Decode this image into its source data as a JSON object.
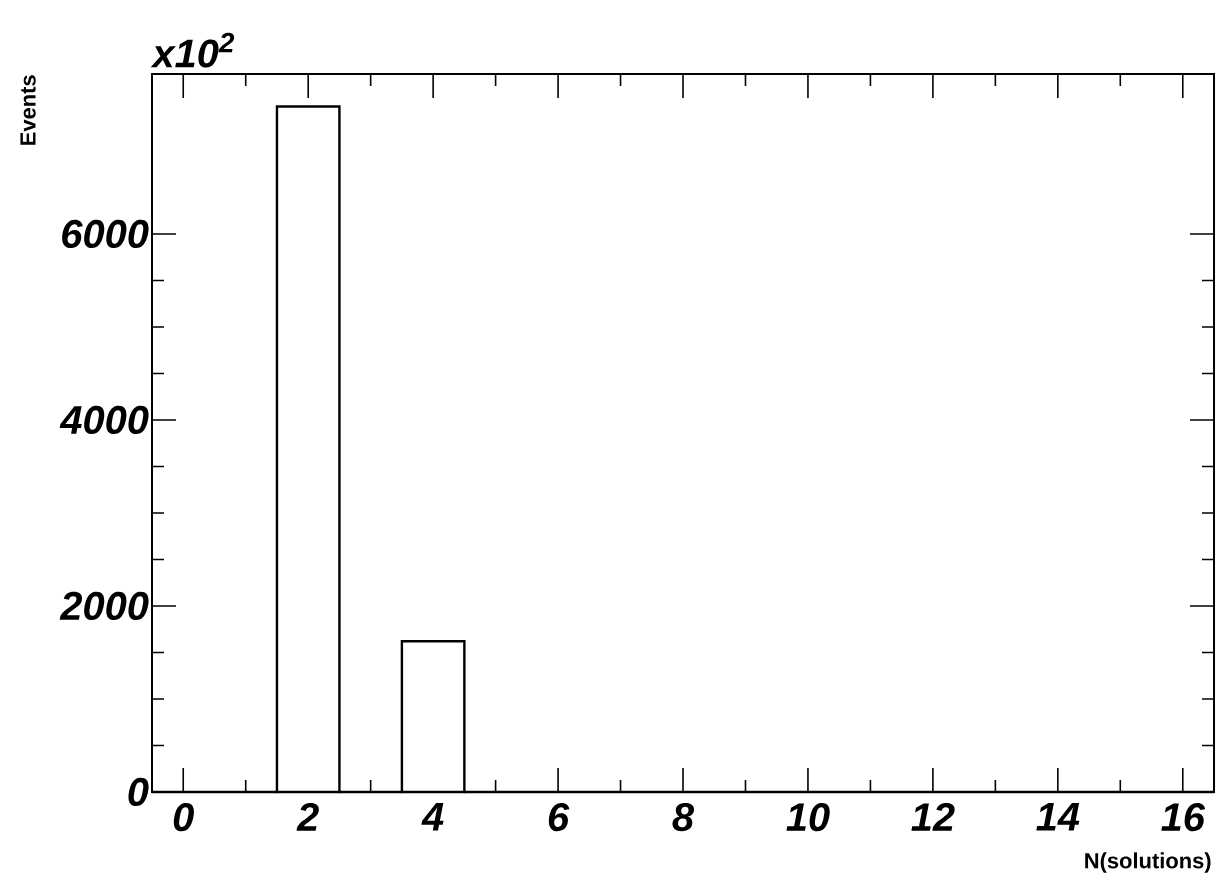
{
  "chart_data": {
    "type": "histogram",
    "xlabel": "N(solutions)",
    "ylabel": "Events",
    "annotations": [
      "x10$^{2}$"
    ],
    "bins": [
      -0.5,
      0.5,
      1.5,
      2.5,
      3.5,
      4.5,
      5.5,
      6.5,
      7.5,
      8.5,
      9.5,
      10.5,
      11.5,
      12.5,
      13.5,
      14.5,
      15.5,
      16.5
    ],
    "values": [
      0,
      0,
      7370,
      0,
      1620,
      0,
      0,
      0,
      0,
      0,
      0,
      0,
      0,
      0,
      0,
      0,
      0
    ],
    "xlim": [
      -0.5,
      16.5
    ],
    "ylim": [
      0,
      7720
    ],
    "xticks": [
      0,
      2,
      4,
      6,
      8,
      10,
      12,
      14,
      16
    ],
    "yticks": [
      0,
      2000,
      4000,
      6000
    ]
  }
}
